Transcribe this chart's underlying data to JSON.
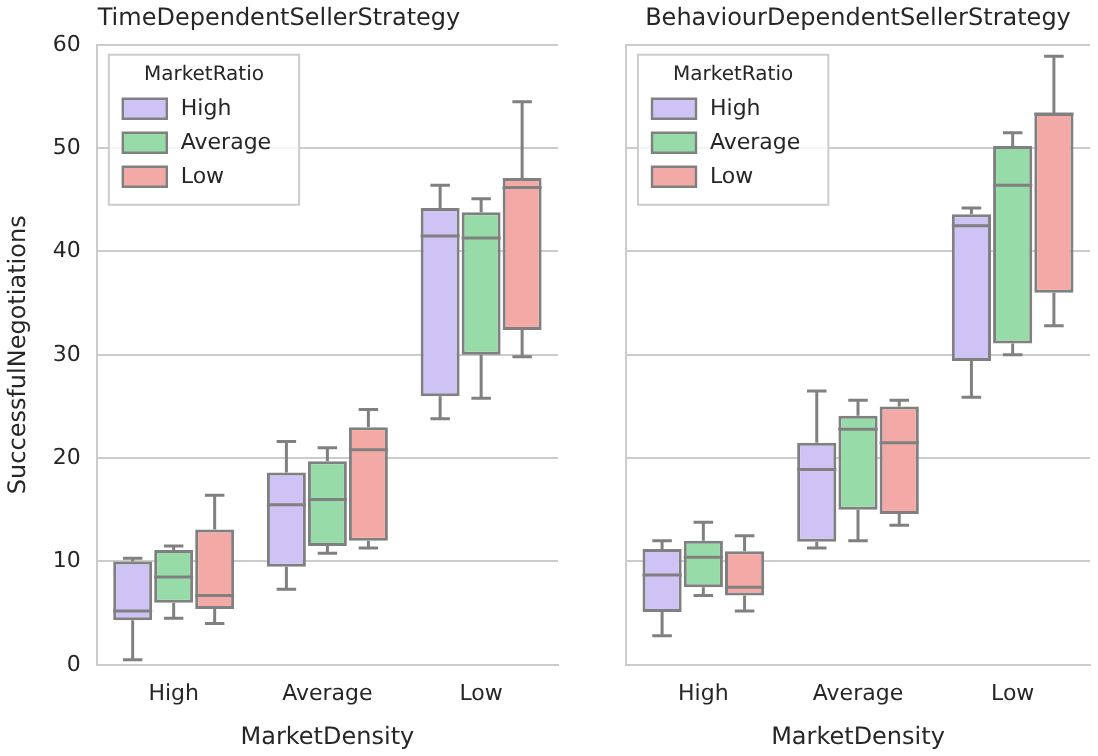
{
  "chart_data": [
    {
      "type": "box",
      "title": "TimeDependentSellerStrategy",
      "xlabel": "MarketDensity",
      "ylabel": "SuccessfulNegotiations",
      "legend_title": "MarketRatio",
      "legend": "top left",
      "grid": "y",
      "categories": [
        "High",
        "Average",
        "Low"
      ],
      "ylim": [
        0,
        60
      ],
      "yticks": [
        0,
        10,
        20,
        30,
        40,
        50,
        60
      ],
      "series": [
        {
          "name": "High",
          "color": "#cfc3f5",
          "boxes": [
            {
              "low": 0.5,
              "q1": 4.3,
              "median": 5.2,
              "q3": 10,
              "high": 10.3
            },
            {
              "low": 7.3,
              "q1": 9.5,
              "median": 15.5,
              "q3": 18.6,
              "high": 21.6
            },
            {
              "low": 23.8,
              "q1": 26,
              "median": 41.5,
              "q3": 44.2,
              "high": 46.4
            }
          ]
        },
        {
          "name": "Average",
          "color": "#97dba8",
          "boxes": [
            {
              "low": 4.5,
              "q1": 6,
              "median": 8.5,
              "q3": 11.1,
              "high": 11.5
            },
            {
              "low": 10.8,
              "q1": 11.5,
              "median": 16,
              "q3": 19.7,
              "high": 21
            },
            {
              "low": 25.8,
              "q1": 30,
              "median": 41.3,
              "q3": 43.8,
              "high": 45.1
            }
          ]
        },
        {
          "name": "Low",
          "color": "#f3aaa6",
          "boxes": [
            {
              "low": 4,
              "q1": 5.4,
              "median": 6.7,
              "q3": 13.1,
              "high": 16.4
            },
            {
              "low": 11.3,
              "q1": 12,
              "median": 20.8,
              "q3": 23,
              "high": 24.7
            },
            {
              "low": 29.8,
              "q1": 32.4,
              "median": 46.2,
              "q3": 47.1,
              "high": 54.5
            }
          ]
        }
      ]
    },
    {
      "type": "box",
      "title": "BehaviourDependentSellerStrategy",
      "xlabel": "MarketDensity",
      "legend_title": "MarketRatio",
      "legend": "top left",
      "grid": "y",
      "tick_labels": "x",
      "categories": [
        "High",
        "Average",
        "Low"
      ],
      "ylim": [
        0,
        60
      ],
      "yticks": [
        0,
        10,
        20,
        30,
        40,
        50,
        60
      ],
      "series": [
        {
          "name": "High",
          "color": "#cfc3f5",
          "boxes": [
            {
              "low": 2.8,
              "q1": 5.1,
              "median": 8.7,
              "q3": 11.2,
              "high": 12
            },
            {
              "low": 11.3,
              "q1": 11.9,
              "median": 18.9,
              "q3": 21.5,
              "high": 26.5
            },
            {
              "low": 25.9,
              "q1": 29.4,
              "median": 42.5,
              "q3": 43.6,
              "high": 44.2
            }
          ]
        },
        {
          "name": "Average",
          "color": "#97dba8",
          "boxes": [
            {
              "low": 6.7,
              "q1": 7.5,
              "median": 10.4,
              "q3": 12,
              "high": 13.8
            },
            {
              "low": 12,
              "q1": 15,
              "median": 22.8,
              "q3": 24.1,
              "high": 25.6
            },
            {
              "low": 30,
              "q1": 31.1,
              "median": 46.4,
              "q3": 50.2,
              "high": 51.5
            }
          ]
        },
        {
          "name": "Low",
          "color": "#f3aaa6",
          "boxes": [
            {
              "low": 5.2,
              "q1": 6.7,
              "median": 7.5,
              "q3": 11,
              "high": 12.5
            },
            {
              "low": 13.5,
              "q1": 14.6,
              "median": 21.5,
              "q3": 25,
              "high": 25.6
            },
            {
              "low": 32.8,
              "q1": 36,
              "median": 53.3,
              "q3": 53.4,
              "high": 58.9
            }
          ]
        }
      ]
    }
  ]
}
